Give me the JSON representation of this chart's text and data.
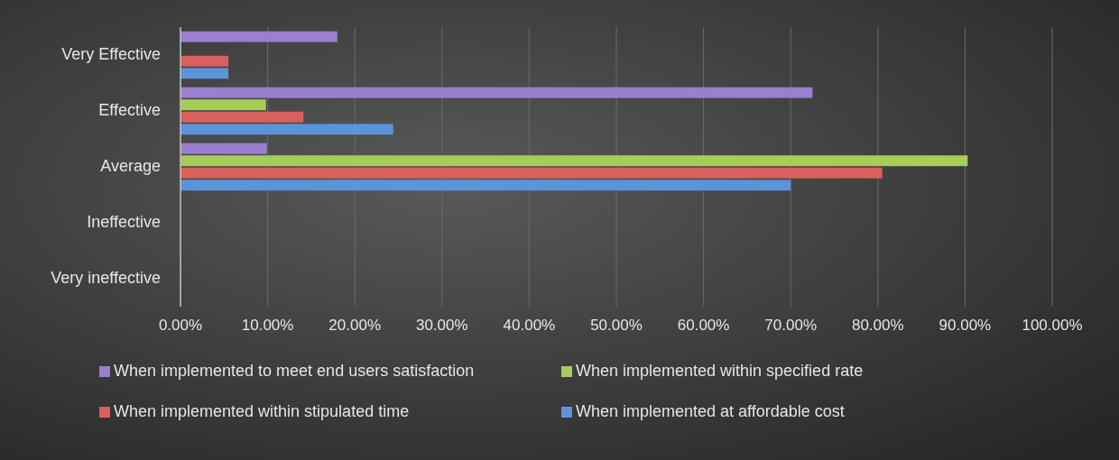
{
  "chart_data": {
    "type": "bar",
    "orientation": "horizontal",
    "categories": [
      "Very Effective",
      "Effective",
      "Average",
      "Ineffective",
      "Very ineffective"
    ],
    "series": [
      {
        "name": "When implemented to meet end users satisfaction",
        "color": "#9a7fcf",
        "values": [
          18,
          72.5,
          9.9,
          0,
          0
        ]
      },
      {
        "name": "When implemented within specified rate",
        "color": "#a8cc5c",
        "values": [
          0,
          9.8,
          90.3,
          0,
          0
        ]
      },
      {
        "name": "When implemented within stipulated time",
        "color": "#d9605c",
        "values": [
          5.5,
          14.1,
          80.5,
          0,
          0
        ]
      },
      {
        "name": "When implemented at affordable cost",
        "color": "#5b95d8",
        "values": [
          5.5,
          24.4,
          70,
          0,
          0
        ]
      }
    ],
    "xlim": [
      0,
      100
    ],
    "xticks": [
      {
        "value": 0,
        "label": "0.00%"
      },
      {
        "value": 10,
        "label": "10.00%"
      },
      {
        "value": 20,
        "label": "20.00%"
      },
      {
        "value": 30,
        "label": "30.00%"
      },
      {
        "value": 40,
        "label": "40.00%"
      },
      {
        "value": 50,
        "label": "50.00%"
      },
      {
        "value": 60,
        "label": "60.00%"
      },
      {
        "value": 70,
        "label": "70.00%"
      },
      {
        "value": 80,
        "label": "80.00%"
      },
      {
        "value": 90,
        "label": "90.00%"
      },
      {
        "value": 100,
        "label": "100.00%"
      }
    ],
    "grid": "x",
    "legend": "bottom"
  }
}
